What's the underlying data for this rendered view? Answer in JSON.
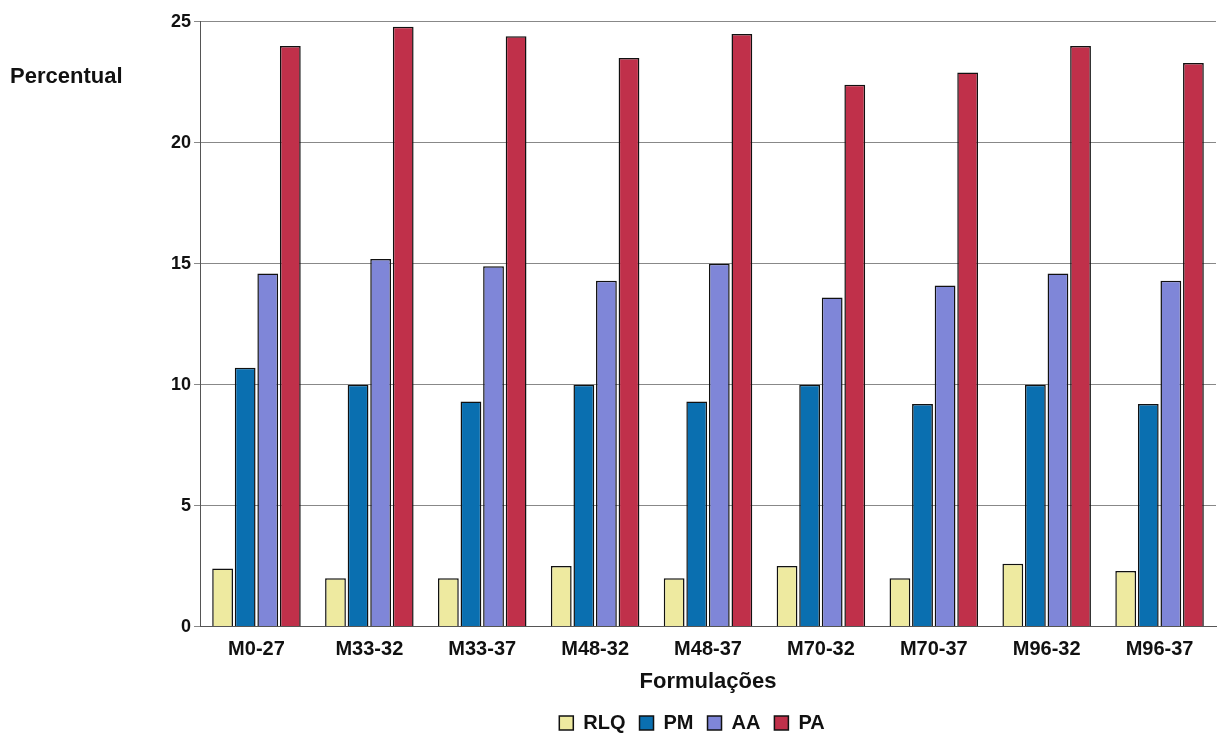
{
  "chart_data": {
    "type": "bar",
    "xlabel": "Formulações",
    "ylabel": "Percentual",
    "categories": [
      "M0-27",
      "M33-32",
      "M33-37",
      "M48-32",
      "M48-37",
      "M70-32",
      "M70-37",
      "M96-32",
      "M96-37"
    ],
    "series": [
      {
        "name": "RLQ",
        "color": "#eeeaa0",
        "values": [
          2.4,
          2.0,
          2.0,
          2.5,
          2.0,
          2.5,
          2.0,
          2.6,
          2.3
        ]
      },
      {
        "name": "PM",
        "color": "#0a6fb0",
        "values": [
          10.7,
          10.0,
          9.3,
          10.0,
          9.3,
          10.0,
          9.2,
          10.0,
          9.2
        ]
      },
      {
        "name": "AA",
        "color": "#7f86d8",
        "values": [
          14.6,
          15.2,
          14.9,
          14.3,
          15.0,
          13.6,
          14.1,
          14.6,
          14.3
        ]
      },
      {
        "name": "PA",
        "color": "#c0304a",
        "values": [
          24.0,
          24.8,
          24.4,
          23.5,
          24.5,
          22.4,
          22.9,
          24.0,
          23.3
        ]
      }
    ],
    "ylim": [
      0,
      25
    ],
    "yticks": [
      0,
      5,
      10,
      15,
      20,
      25
    ],
    "grid": "y",
    "legend": "bottom"
  }
}
